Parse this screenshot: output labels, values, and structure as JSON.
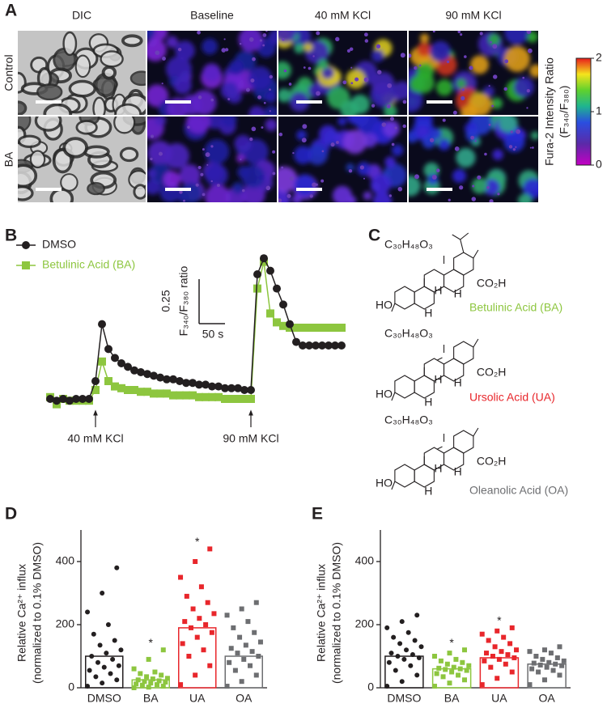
{
  "panel_a": {
    "label": "A",
    "columns": [
      "DIC",
      "Baseline",
      "40 mM KCl",
      "90 mM KCl"
    ],
    "rows": [
      "Control",
      "BA"
    ],
    "colorbar": {
      "title": [
        "Fura-2 Intensity Ratio",
        "(F₃₄₀/F₃₈₀)"
      ],
      "lim": [
        0,
        2
      ],
      "ticks": [
        0,
        1,
        2
      ]
    }
  },
  "panel_c": {
    "label": "C",
    "compounds": [
      {
        "formula": "C₃₀H₄₈O₃",
        "name": "Betulinic Acid (BA)",
        "color": "#8dc63f",
        "atoms": [
          "HO",
          "CO₂H",
          "H",
          "H",
          "H"
        ]
      },
      {
        "formula": "C₃₀H₄₈O₃",
        "name": "Ursolic Acid (UA)",
        "color": "#e8262b",
        "atoms": [
          "HO",
          "CO₂H",
          "H",
          "H",
          "H"
        ]
      },
      {
        "formula": "C₃₀H₄₈O₃",
        "name": "Oleanolic Acid (OA)",
        "color": "#6d6e71",
        "atoms": [
          "HO",
          "CO₂H",
          "H",
          "H",
          "H"
        ]
      }
    ]
  },
  "chart_data": [
    {
      "type": "line",
      "label": "B",
      "x": [
        0,
        12.5,
        25,
        37.5,
        50,
        62.5,
        75,
        87.5,
        100,
        112.5,
        125,
        137.5,
        150,
        162.5,
        175,
        187.5,
        200,
        212.5,
        225,
        237.5,
        250,
        262.5,
        275,
        287.5,
        300,
        312.5,
        325,
        337.5,
        350,
        362.5,
        375,
        387.5,
        400,
        412.5,
        425,
        437.5,
        450,
        462.5,
        475,
        487.5,
        500,
        512.5,
        525,
        537.5,
        550,
        562.5
      ],
      "xlim": [
        0,
        562.5
      ],
      "ylim": [
        0.4,
        1.35
      ],
      "series": [
        {
          "name": "DMSO",
          "color": "#231f20",
          "marker": "circle",
          "values": [
            0.5,
            0.49,
            0.5,
            0.49,
            0.5,
            0.5,
            0.5,
            0.6,
            0.92,
            0.78,
            0.73,
            0.7,
            0.68,
            0.66,
            0.65,
            0.64,
            0.63,
            0.62,
            0.61,
            0.61,
            0.6,
            0.59,
            0.59,
            0.58,
            0.58,
            0.57,
            0.57,
            0.56,
            0.56,
            0.56,
            0.55,
            0.55,
            1.2,
            1.29,
            1.22,
            1.12,
            1.03,
            0.92,
            0.82,
            0.8,
            0.8,
            0.8,
            0.8,
            0.8,
            0.8,
            0.8
          ]
        },
        {
          "name": "Betulinic Acid (BA)",
          "color": "#8dc63f",
          "marker": "square",
          "values": [
            0.51,
            0.47,
            0.5,
            0.49,
            0.49,
            0.49,
            0.49,
            0.55,
            0.71,
            0.6,
            0.57,
            0.56,
            0.55,
            0.55,
            0.54,
            0.54,
            0.53,
            0.53,
            0.53,
            0.52,
            0.52,
            0.52,
            0.52,
            0.51,
            0.51,
            0.51,
            0.51,
            0.5,
            0.5,
            0.5,
            0.5,
            0.5,
            1.12,
            1.27,
            0.98,
            0.93,
            0.91,
            0.9,
            0.9,
            0.9,
            0.9,
            0.9,
            0.9,
            0.9,
            0.9,
            0.9
          ]
        }
      ],
      "annotations": [
        {
          "text": "40 mM KCl",
          "x": 87.5
        },
        {
          "text": "90 mM KCl",
          "x": 387.5
        }
      ],
      "scale_bar": {
        "y": 0.25,
        "x": {
          "value": 50,
          "label": "50 s"
        },
        "ylabel": "F₃₄₀/F₃₈₀ ratio"
      }
    },
    {
      "type": "bar",
      "label": "D",
      "categories": [
        "DMSO",
        "BA",
        "UA",
        "OA"
      ],
      "colors": [
        "#231f20",
        "#8dc63f",
        "#e8262b",
        "#6d6e71"
      ],
      "markers": [
        "circle",
        "square",
        "square",
        "square"
      ],
      "values": [
        100,
        25,
        190,
        100
      ],
      "points": [
        [
          5,
          15,
          25,
          35,
          45,
          55,
          65,
          70,
          80,
          90,
          100,
          110,
          120,
          135,
          150,
          170,
          200,
          240,
          300,
          380
        ],
        [
          0,
          2,
          5,
          8,
          10,
          12,
          15,
          18,
          20,
          22,
          25,
          28,
          30,
          35,
          40,
          45,
          50,
          60,
          90,
          120
        ],
        [
          10,
          40,
          70,
          100,
          120,
          140,
          160,
          175,
          190,
          200,
          210,
          220,
          235,
          250,
          270,
          290,
          320,
          350,
          400,
          440
        ],
        [
          5,
          20,
          40,
          55,
          70,
          80,
          90,
          100,
          110,
          115,
          125,
          135,
          145,
          160,
          175,
          190,
          210,
          230,
          250,
          270
        ]
      ],
      "significance": [
        null,
        "*",
        "*",
        null
      ],
      "ylabel": [
        "Relative Ca²⁺ influx",
        "(normalized to 0.1% DMSO)"
      ],
      "ylim": [
        0,
        500
      ],
      "yticks": [
        0,
        200,
        400
      ]
    },
    {
      "type": "bar",
      "label": "E",
      "categories": [
        "DMSO",
        "BA",
        "UA",
        "OA"
      ],
      "colors": [
        "#231f20",
        "#8dc63f",
        "#e8262b",
        "#6d6e71"
      ],
      "markers": [
        "circle",
        "square",
        "square",
        "square"
      ],
      "values": [
        100,
        60,
        95,
        75
      ],
      "points": [
        [
          5,
          20,
          40,
          55,
          70,
          80,
          90,
          95,
          100,
          105,
          110,
          120,
          130,
          140,
          150,
          160,
          175,
          190,
          210,
          230
        ],
        [
          5,
          15,
          25,
          35,
          40,
          45,
          50,
          55,
          58,
          60,
          62,
          65,
          70,
          75,
          80,
          85,
          90,
          100,
          110,
          120
        ],
        [
          10,
          30,
          50,
          65,
          75,
          85,
          90,
          95,
          100,
          105,
          110,
          115,
          120,
          130,
          140,
          150,
          160,
          170,
          180,
          190
        ],
        [
          10,
          25,
          40,
          50,
          55,
          60,
          65,
          70,
          72,
          75,
          78,
          80,
          85,
          90,
          95,
          100,
          110,
          115,
          120,
          130
        ]
      ],
      "significance": [
        null,
        "*",
        "*",
        null
      ],
      "ylabel": [
        "Relative Ca²⁺ influx",
        "(normalized to 0.1% DMSO)"
      ],
      "ylim": [
        0,
        500
      ],
      "yticks": [
        0,
        200,
        400
      ]
    }
  ]
}
